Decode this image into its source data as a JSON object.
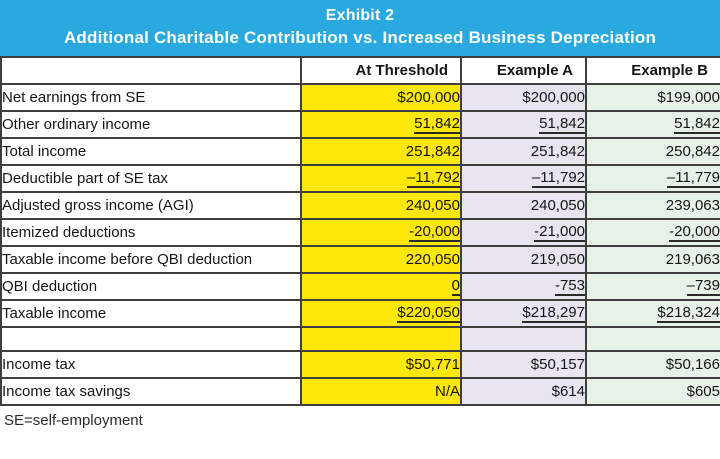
{
  "colors": {
    "blue": "#29A9E0",
    "yellow": "#FFE70A",
    "lav": "#E8E5F1",
    "grn": "#E7F2E6"
  },
  "banner": {
    "title_line1": "Exhibit 2",
    "title_line2": "Additional Charitable Contribution vs. Increased Business Depreciation"
  },
  "table": {
    "columns": [
      "At Threshold",
      "Example A",
      "Example B"
    ],
    "rows": [
      {
        "label": "Net earnings from SE",
        "values": [
          "$200,000",
          "$200,000",
          "$199,000"
        ],
        "underline": false,
        "spacer": false
      },
      {
        "label": "Other ordinary income",
        "values": [
          "51,842",
          "51,842",
          "51,842"
        ],
        "underline": true,
        "spacer": false
      },
      {
        "label": "Total income",
        "values": [
          "251,842",
          "251,842",
          "250,842"
        ],
        "underline": false,
        "spacer": false
      },
      {
        "label": "Deductible part of SE tax",
        "values": [
          "–11,792",
          "–11,792",
          "–11,779"
        ],
        "underline": true,
        "spacer": false
      },
      {
        "label": "Adjusted gross income (AGI)",
        "values": [
          "240,050",
          "240,050",
          "239,063"
        ],
        "underline": false,
        "spacer": false
      },
      {
        "label": "Itemized deductions",
        "values": [
          "-20,000",
          "-21,000",
          "-20,000"
        ],
        "underline": true,
        "spacer": false
      },
      {
        "label": "Taxable income before QBI deduction",
        "values": [
          "220,050",
          "219,050",
          "219,063"
        ],
        "underline": false,
        "spacer": false
      },
      {
        "label": "QBI deduction",
        "values": [
          "0",
          "-753",
          "–739"
        ],
        "underline": true,
        "spacer": false
      },
      {
        "label": "Taxable income",
        "values": [
          "$220,050",
          "$218,297",
          "$218,324"
        ],
        "underline": true,
        "spacer": false
      },
      {
        "label": "",
        "values": [
          "",
          "",
          ""
        ],
        "underline": false,
        "spacer": true
      },
      {
        "label": "Income tax",
        "values": [
          "$50,771",
          "$50,157",
          "$50,166"
        ],
        "underline": false,
        "spacer": false
      },
      {
        "label": "Income tax savings",
        "values": [
          "N/A",
          "$614",
          "$605"
        ],
        "underline": false,
        "spacer": false
      }
    ]
  },
  "footnote": "SE=self-employment"
}
